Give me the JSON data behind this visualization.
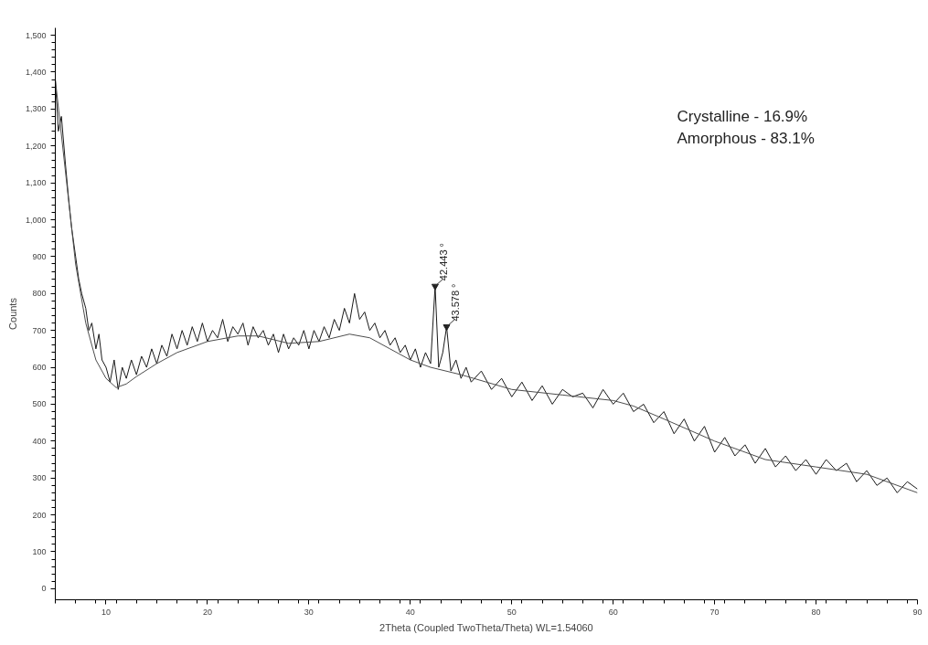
{
  "chart_data": {
    "type": "line",
    "xlabel": "2Theta (Coupled TwoTheta/Theta) WL=1.54060",
    "ylabel": "Counts",
    "xlim": [
      5,
      90
    ],
    "ylim": [
      -30,
      1520
    ],
    "xticks": [
      10,
      20,
      30,
      40,
      50,
      60,
      70,
      80,
      90
    ],
    "yticks": [
      0,
      100,
      200,
      300,
      400,
      500,
      600,
      700,
      800,
      900,
      {
        "value": 1000,
        "label": "1,000"
      },
      {
        "value": 1100,
        "label": "1,100"
      },
      {
        "value": 1200,
        "label": "1,200"
      },
      {
        "value": 1300,
        "label": "1,300"
      },
      {
        "value": 1400,
        "label": "1,400"
      },
      {
        "value": 1500,
        "label": "1,500"
      }
    ],
    "grid": false,
    "marker": "none",
    "line_style": "solid",
    "series": [
      {
        "color": "#1a1a1a",
        "x": [
          5,
          5.3,
          5.6,
          6,
          6.3,
          6.6,
          7,
          7.3,
          7.6,
          8,
          8.3,
          8.6,
          9,
          9.3,
          9.6,
          10,
          10.4,
          10.8,
          11.2,
          11.6,
          12,
          12.5,
          13,
          13.5,
          14,
          14.5,
          15,
          15.5,
          16,
          16.5,
          17,
          17.5,
          18,
          18.5,
          19,
          19.5,
          20,
          20.5,
          21,
          21.5,
          22,
          22.5,
          23,
          23.5,
          24,
          24.5,
          25,
          25.5,
          26,
          26.5,
          27,
          27.5,
          28,
          28.5,
          29,
          29.5,
          30,
          30.5,
          31,
          31.5,
          32,
          32.5,
          33,
          33.5,
          34,
          34.5,
          35,
          35.5,
          36,
          36.5,
          37,
          37.5,
          38,
          38.5,
          39,
          39.5,
          40,
          40.5,
          41,
          41.5,
          42,
          42.443,
          42.8,
          43.2,
          43.578,
          44,
          44.5,
          45,
          45.5,
          46,
          47,
          48,
          49,
          50,
          51,
          52,
          53,
          54,
          55,
          56,
          57,
          58,
          59,
          60,
          61,
          62,
          63,
          64,
          65,
          66,
          67,
          68,
          69,
          70,
          71,
          72,
          73,
          74,
          75,
          76,
          77,
          78,
          79,
          80,
          81,
          82,
          83,
          84,
          85,
          86,
          87,
          88,
          89,
          90
        ],
        "values": [
          1380,
          1240,
          1280,
          1150,
          1060,
          980,
          900,
          840,
          800,
          760,
          700,
          720,
          650,
          690,
          620,
          600,
          560,
          620,
          540,
          600,
          570,
          620,
          580,
          630,
          600,
          650,
          610,
          660,
          630,
          690,
          650,
          700,
          660,
          710,
          670,
          720,
          670,
          700,
          680,
          730,
          670,
          710,
          690,
          720,
          660,
          710,
          680,
          700,
          660,
          690,
          640,
          690,
          650,
          680,
          660,
          700,
          650,
          700,
          670,
          710,
          680,
          730,
          700,
          760,
          720,
          800,
          730,
          750,
          700,
          720,
          680,
          700,
          660,
          680,
          640,
          660,
          620,
          650,
          600,
          640,
          610,
          820,
          600,
          640,
          710,
          590,
          620,
          570,
          600,
          560,
          590,
          540,
          570,
          520,
          560,
          510,
          550,
          500,
          540,
          520,
          530,
          490,
          540,
          500,
          530,
          480,
          500,
          450,
          480,
          420,
          460,
          400,
          440,
          370,
          410,
          360,
          390,
          340,
          380,
          330,
          360,
          320,
          350,
          310,
          350,
          320,
          340,
          290,
          320,
          280,
          300,
          260,
          290,
          270
        ]
      },
      {
        "color": "#4d4d4d",
        "x": [
          5,
          6,
          7,
          8,
          9,
          10,
          11,
          12,
          13,
          15,
          17,
          20,
          23,
          25,
          28,
          31,
          34,
          36,
          38,
          40,
          42,
          45,
          50,
          55,
          60,
          62,
          65,
          70,
          75,
          80,
          85,
          90
        ],
        "values": [
          1380,
          1130,
          880,
          720,
          620,
          570,
          545,
          555,
          575,
          610,
          640,
          670,
          685,
          685,
          665,
          670,
          690,
          680,
          650,
          620,
          600,
          580,
          540,
          525,
          510,
          495,
          460,
          400,
          350,
          330,
          310,
          260
        ]
      }
    ],
    "annotations": [
      {
        "text": "42.443 °",
        "x": 42.443,
        "y": 820
      },
      {
        "text": "43.578 °",
        "x": 43.578,
        "y": 710
      },
      "Crystalline - 16.9%",
      "Amorphous - 83.1%"
    ]
  }
}
